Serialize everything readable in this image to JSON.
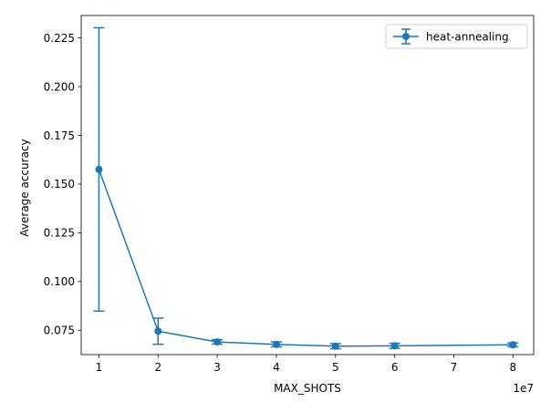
{
  "chart_data": {
    "type": "line",
    "xlabel": "MAX_SHOTS",
    "ylabel": "Average accuracy",
    "x_offset_label": "1e7",
    "x_scale_multiplier": 10000000,
    "xlim": [
      0.7,
      8.35
    ],
    "ylim": [
      0.0625,
      0.2365
    ],
    "x_ticks": [
      1,
      2,
      3,
      4,
      5,
      6,
      7,
      8
    ],
    "x_tick_labels": [
      "1",
      "2",
      "3",
      "4",
      "5",
      "6",
      "7",
      "8"
    ],
    "y_ticks": [
      0.075,
      0.1,
      0.125,
      0.15,
      0.175,
      0.2,
      0.225
    ],
    "y_tick_labels": [
      "0.075",
      "0.100",
      "0.125",
      "0.150",
      "0.175",
      "0.200",
      "0.225"
    ],
    "grid": false,
    "legend_position": "top-right",
    "series": [
      {
        "name": "heat-annealing",
        "color": "#1f77b4",
        "marker": "circle",
        "error_bars": true,
        "x": [
          1,
          2,
          3,
          4,
          5,
          6,
          8
        ],
        "y": [
          0.1575,
          0.0745,
          0.069,
          0.0677,
          0.0668,
          0.067,
          0.0675
        ],
        "yerr_low": [
          0.0848,
          0.0678,
          0.0679,
          0.0665,
          0.0655,
          0.0657,
          0.0665
        ],
        "yerr_high": [
          0.2302,
          0.0812,
          0.0701,
          0.069,
          0.0681,
          0.0683,
          0.0685
        ]
      }
    ]
  }
}
